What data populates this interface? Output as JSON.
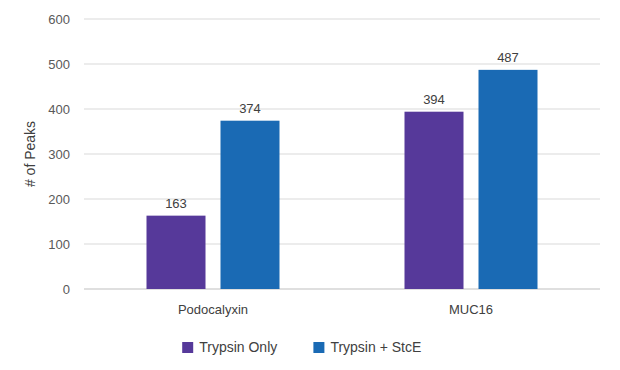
{
  "chart_data": {
    "type": "bar",
    "y_label": "# of Peaks",
    "categories": [
      "Podocalyxin",
      "MUC16"
    ],
    "series": [
      {
        "name": "Trypsin Only",
        "color": "#56399a",
        "values": [
          163,
          394
        ]
      },
      {
        "name": "Trypsin + StcE",
        "color": "#1a6ab4",
        "values": [
          374,
          487
        ]
      }
    ],
    "ylim": [
      0,
      600
    ],
    "yticks": [
      0,
      100,
      200,
      300,
      400,
      500,
      600
    ],
    "grid": true,
    "data_labels": true,
    "legend": "bottom"
  }
}
